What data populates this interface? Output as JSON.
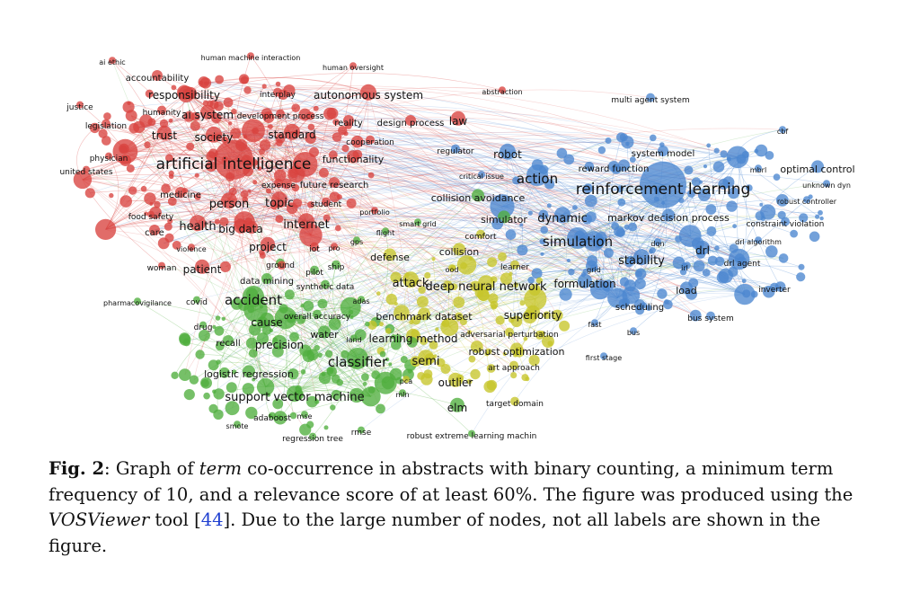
{
  "colors": {
    "red": "#d9433f",
    "green": "#4fae3d",
    "yellow": "#c7c52a",
    "blue": "#4b86d0"
  },
  "labels": [
    {
      "text": "ai ethic",
      "cluster": "red",
      "size": "xs"
    },
    {
      "text": "human machine interaction",
      "cluster": "red",
      "size": "xs"
    },
    {
      "text": "human oversight",
      "cluster": "red",
      "size": "xs"
    },
    {
      "text": "accountability",
      "cluster": "red",
      "size": "s"
    },
    {
      "text": "responsibility",
      "cluster": "red",
      "size": "m"
    },
    {
      "text": "interplay",
      "cluster": "red",
      "size": "xs"
    },
    {
      "text": "autonomous system",
      "cluster": "red",
      "size": "m"
    },
    {
      "text": "abstraction",
      "cluster": "red",
      "size": "xs"
    },
    {
      "text": "justice",
      "cluster": "red",
      "size": "xs"
    },
    {
      "text": "humanity",
      "cluster": "red",
      "size": "xs"
    },
    {
      "text": "ai system",
      "cluster": "red",
      "size": "m"
    },
    {
      "text": "development process",
      "cluster": "red",
      "size": "xs"
    },
    {
      "text": "reality",
      "cluster": "red",
      "size": "s"
    },
    {
      "text": "design process",
      "cluster": "red",
      "size": "s"
    },
    {
      "text": "law",
      "cluster": "red",
      "size": "m"
    },
    {
      "text": "legislation",
      "cluster": "red",
      "size": "xs"
    },
    {
      "text": "trust",
      "cluster": "red",
      "size": "m"
    },
    {
      "text": "society",
      "cluster": "red",
      "size": "m"
    },
    {
      "text": "standard",
      "cluster": "red",
      "size": "m"
    },
    {
      "text": "cooperation",
      "cluster": "red",
      "size": "xs"
    },
    {
      "text": "physician",
      "cluster": "red",
      "size": "xs"
    },
    {
      "text": "functionality",
      "cluster": "red",
      "size": "s"
    },
    {
      "text": "united states",
      "cluster": "red",
      "size": "xs"
    },
    {
      "text": "artificial intelligence",
      "cluster": "red",
      "size": "xl"
    },
    {
      "text": "expense",
      "cluster": "red",
      "size": "xs"
    },
    {
      "text": "future research",
      "cluster": "red",
      "size": "s"
    },
    {
      "text": "medicine",
      "cluster": "red",
      "size": "s"
    },
    {
      "text": "person",
      "cluster": "red",
      "size": "m"
    },
    {
      "text": "topic",
      "cluster": "red",
      "size": "m"
    },
    {
      "text": "student",
      "cluster": "red",
      "size": "xs"
    },
    {
      "text": "portfolio",
      "cluster": "red",
      "size": "xs"
    },
    {
      "text": "food safety",
      "cluster": "red",
      "size": "xs"
    },
    {
      "text": "health",
      "cluster": "red",
      "size": "m"
    },
    {
      "text": "big data",
      "cluster": "red",
      "size": "m"
    },
    {
      "text": "internet",
      "cluster": "red",
      "size": "m"
    },
    {
      "text": "care",
      "cluster": "red",
      "size": "s"
    },
    {
      "text": "violence",
      "cluster": "red",
      "size": "xs"
    },
    {
      "text": "project",
      "cluster": "red",
      "size": "m"
    },
    {
      "text": "iot",
      "cluster": "red",
      "size": "xs"
    },
    {
      "text": "pro",
      "cluster": "red",
      "size": "xs"
    },
    {
      "text": "woman",
      "cluster": "red",
      "size": "xs"
    },
    {
      "text": "patient",
      "cluster": "red",
      "size": "m"
    },
    {
      "text": "multi agent system",
      "cluster": "blue",
      "size": "xs"
    },
    {
      "text": "regulator",
      "cluster": "blue",
      "size": "xs"
    },
    {
      "text": "robot",
      "cluster": "blue",
      "size": "m"
    },
    {
      "text": "system model",
      "cluster": "blue",
      "size": "xs"
    },
    {
      "text": "cbf",
      "cluster": "blue",
      "size": "xs"
    },
    {
      "text": "critical issue",
      "cluster": "blue",
      "size": "xs"
    },
    {
      "text": "reward function",
      "cluster": "blue",
      "size": "xs"
    },
    {
      "text": "mbrl",
      "cluster": "blue",
      "size": "xs"
    },
    {
      "text": "optimal control",
      "cluster": "blue",
      "size": "s"
    },
    {
      "text": "action",
      "cluster": "blue",
      "size": "l"
    },
    {
      "text": "unknown dyn",
      "cluster": "blue",
      "size": "xs"
    },
    {
      "text": "reinforcement learning",
      "cluster": "blue",
      "size": "xl"
    },
    {
      "text": "robust controller",
      "cluster": "blue",
      "size": "xs"
    },
    {
      "text": "collision avoidance",
      "cluster": "green",
      "size": "s"
    },
    {
      "text": "simulator",
      "cluster": "green",
      "size": "s"
    },
    {
      "text": "dynamic",
      "cluster": "blue",
      "size": "m"
    },
    {
      "text": "markov decision process",
      "cluster": "blue",
      "size": "s"
    },
    {
      "text": "constraint violation",
      "cluster": "blue",
      "size": "xs"
    },
    {
      "text": "smart grid",
      "cluster": "green",
      "size": "xs"
    },
    {
      "text": "comfort",
      "cluster": "yellow",
      "size": "xs"
    },
    {
      "text": "simulation",
      "cluster": "blue",
      "size": "l"
    },
    {
      "text": "dqn",
      "cluster": "blue",
      "size": "xs"
    },
    {
      "text": "drl",
      "cluster": "blue",
      "size": "m"
    },
    {
      "text": "drl algorithm",
      "cluster": "blue",
      "size": "xs"
    },
    {
      "text": "flight",
      "cluster": "green",
      "size": "xs"
    },
    {
      "text": "gps",
      "cluster": "green",
      "size": "xs"
    },
    {
      "text": "collision",
      "cluster": "yellow",
      "size": "s"
    },
    {
      "text": "defense",
      "cluster": "yellow",
      "size": "s"
    },
    {
      "text": "stability",
      "cluster": "blue",
      "size": "m"
    },
    {
      "text": "drl agent",
      "cluster": "blue",
      "size": "xs"
    },
    {
      "text": "ground",
      "cluster": "green",
      "size": "xs"
    },
    {
      "text": "pilot",
      "cluster": "green",
      "size": "xs"
    },
    {
      "text": "ship",
      "cluster": "green",
      "size": "xs"
    },
    {
      "text": "ood",
      "cluster": "yellow",
      "size": "xs"
    },
    {
      "text": "learner",
      "cluster": "yellow",
      "size": "xs"
    },
    {
      "text": "grid",
      "cluster": "blue",
      "size": "xs"
    },
    {
      "text": "irl",
      "cluster": "blue",
      "size": "xs"
    },
    {
      "text": "data mining",
      "cluster": "green",
      "size": "s"
    },
    {
      "text": "attack",
      "cluster": "yellow",
      "size": "m"
    },
    {
      "text": "deep neural network",
      "cluster": "yellow",
      "size": "m"
    },
    {
      "text": "formulation",
      "cluster": "blue",
      "size": "m"
    },
    {
      "text": "load",
      "cluster": "blue",
      "size": "s"
    },
    {
      "text": "inverter",
      "cluster": "blue",
      "size": "xs"
    },
    {
      "text": "synthetic data",
      "cluster": "green",
      "size": "xs"
    },
    {
      "text": "pharmacovigilance",
      "cluster": "green",
      "size": "xs"
    },
    {
      "text": "covid",
      "cluster": "green",
      "size": "xs"
    },
    {
      "text": "accident",
      "cluster": "green",
      "size": "l"
    },
    {
      "text": "adas",
      "cluster": "green",
      "size": "xs"
    },
    {
      "text": "scheduling",
      "cluster": "blue",
      "size": "xs"
    },
    {
      "text": "overall accuracy",
      "cluster": "green",
      "size": "xs"
    },
    {
      "text": "benchmark dataset",
      "cluster": "yellow",
      "size": "s"
    },
    {
      "text": "superiority",
      "cluster": "yellow",
      "size": "m"
    },
    {
      "text": "bus system",
      "cluster": "blue",
      "size": "xs"
    },
    {
      "text": "drug",
      "cluster": "green",
      "size": "xs"
    },
    {
      "text": "cause",
      "cluster": "green",
      "size": "m"
    },
    {
      "text": "fast",
      "cluster": "blue",
      "size": "xs"
    },
    {
      "text": "water",
      "cluster": "green",
      "size": "s"
    },
    {
      "text": "adversarial perturbation",
      "cluster": "yellow",
      "size": "xs"
    },
    {
      "text": "bus",
      "cluster": "blue",
      "size": "xs"
    },
    {
      "text": "recall",
      "cluster": "green",
      "size": "s"
    },
    {
      "text": "precision",
      "cluster": "green",
      "size": "m"
    },
    {
      "text": "land",
      "cluster": "green",
      "size": "xs"
    },
    {
      "text": "learning method",
      "cluster": "yellow",
      "size": "m"
    },
    {
      "text": "robust optimization",
      "cluster": "yellow",
      "size": "s"
    },
    {
      "text": "first stage",
      "cluster": "blue",
      "size": "xs"
    },
    {
      "text": "classifier",
      "cluster": "green",
      "size": "l"
    },
    {
      "text": "semi",
      "cluster": "yellow",
      "size": "m"
    },
    {
      "text": "art approach",
      "cluster": "yellow",
      "size": "xs"
    },
    {
      "text": "logistic regression",
      "cluster": "green",
      "size": "s"
    },
    {
      "text": "pca",
      "cluster": "yellow",
      "size": "xs"
    },
    {
      "text": "outlier",
      "cluster": "yellow",
      "size": "m"
    },
    {
      "text": "mln",
      "cluster": "green",
      "size": "xs"
    },
    {
      "text": "support vector machine",
      "cluster": "green",
      "size": "m"
    },
    {
      "text": "target domain",
      "cluster": "yellow",
      "size": "xs"
    },
    {
      "text": "adaboost",
      "cluster": "green",
      "size": "xs"
    },
    {
      "text": "mse",
      "cluster": "green",
      "size": "xs"
    },
    {
      "text": "elm",
      "cluster": "green",
      "size": "m"
    },
    {
      "text": "smote",
      "cluster": "green",
      "size": "xs"
    },
    {
      "text": "rmse",
      "cluster": "green",
      "size": "xs"
    },
    {
      "text": "regression tree",
      "cluster": "green",
      "size": "xs"
    },
    {
      "text": "robust extreme learning machin",
      "cluster": "green",
      "size": "xs"
    }
  ],
  "caption": {
    "fig_label": "Fig. 2",
    "part1": ": Graph of ",
    "term": "term",
    "part2": " co-occurrence in abstracts with binary counting, a minimum term frequency of 10, and a relevance score of at least 60%. The figure was produced using the ",
    "tool": "VOSViewer",
    "part3": " tool [",
    "ref": "44",
    "part4": "]. Due to the large number of nodes, not all labels are shown in the figure."
  }
}
